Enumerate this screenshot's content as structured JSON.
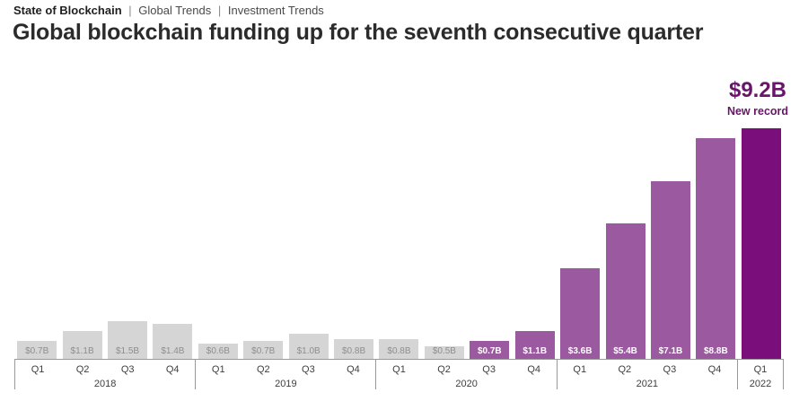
{
  "breadcrumb": {
    "root": "State of Blockchain",
    "separator": "|",
    "items": [
      "Global Trends",
      "Investment Trends"
    ]
  },
  "title": "Global blockchain funding up for the seventh consecutive quarter",
  "colors": {
    "gray": "#D5D5D5",
    "purple": "#9B59A0",
    "dark": "#7A0F7C",
    "gray_label_text": "#8E8E8E",
    "annotation_text": "#69156A",
    "axis": "#999999",
    "tick_text": "#3E3E3E"
  },
  "chart_data": {
    "type": "bar",
    "title": "Global blockchain funding up for the seventh consecutive quarter",
    "ylim": [
      0,
      9.2
    ],
    "grid": false,
    "legend": "none",
    "annotation": {
      "value": "$9.2B",
      "label": "New record"
    },
    "groups": [
      {
        "year": "2018",
        "quarters": [
          "Q1",
          "Q2",
          "Q3",
          "Q4"
        ],
        "values": [
          0.7,
          1.1,
          1.5,
          1.4
        ],
        "bar_labels": [
          "$0.7B",
          "$1.1B",
          "$1.5B",
          "$1.4B"
        ],
        "bar_colors": [
          "gray",
          "gray",
          "gray",
          "gray"
        ]
      },
      {
        "year": "2019",
        "quarters": [
          "Q1",
          "Q2",
          "Q3",
          "Q4"
        ],
        "values": [
          0.6,
          0.7,
          1.0,
          0.8
        ],
        "bar_labels": [
          "$0.6B",
          "$0.7B",
          "$1.0B",
          "$0.8B"
        ],
        "bar_colors": [
          "gray",
          "gray",
          "gray",
          "gray"
        ]
      },
      {
        "year": "2020",
        "quarters": [
          "Q1",
          "Q2",
          "Q3",
          "Q4"
        ],
        "values": [
          0.8,
          0.5,
          0.7,
          1.1
        ],
        "bar_labels": [
          "$0.8B",
          "$0.5B",
          "$0.7B",
          "$1.1B"
        ],
        "bar_colors": [
          "gray",
          "gray",
          "purple",
          "purple"
        ]
      },
      {
        "year": "2021",
        "quarters": [
          "Q1",
          "Q2",
          "Q3",
          "Q4"
        ],
        "values": [
          3.6,
          5.4,
          7.1,
          8.8
        ],
        "bar_labels": [
          "$3.6B",
          "$5.4B",
          "$7.1B",
          "$8.8B"
        ],
        "bar_colors": [
          "purple",
          "purple",
          "purple",
          "purple"
        ]
      },
      {
        "year": "2022",
        "quarters": [
          "Q1"
        ],
        "values": [
          9.2
        ],
        "bar_labels": [
          ""
        ],
        "bar_colors": [
          "dark"
        ]
      }
    ]
  }
}
